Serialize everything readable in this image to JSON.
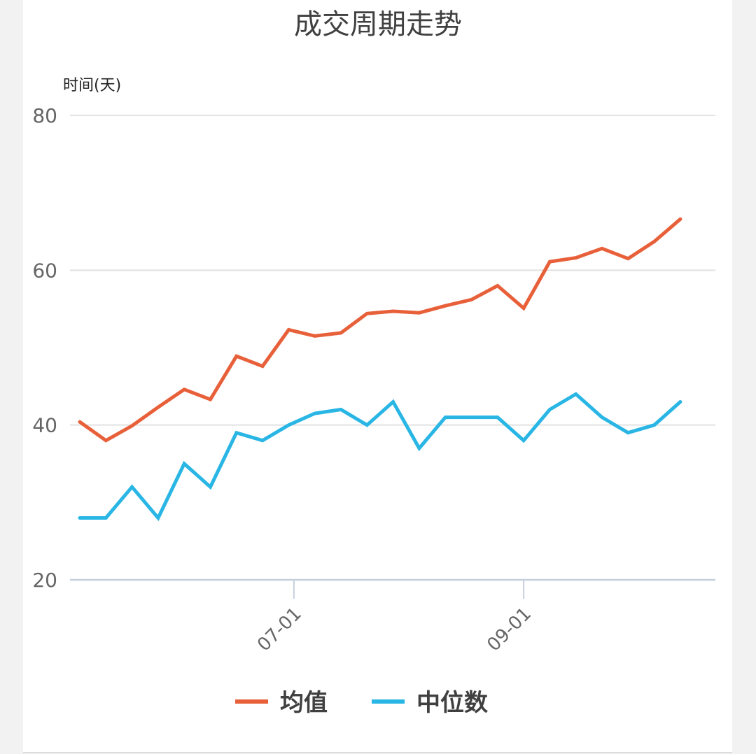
{
  "chart_data": {
    "type": "line",
    "title": "成交周期走势",
    "ylabel": "时间(天)",
    "ylim": [
      20,
      80
    ],
    "yticks": [
      20,
      40,
      60,
      80
    ],
    "x_tick_labels": [
      "07-01",
      "09-01"
    ],
    "x_tick_indices": [
      8.2,
      17.0
    ],
    "grid": true,
    "legend_position": "bottom",
    "series": [
      {
        "name": "均值",
        "color": "#e8603a",
        "values": [
          40.4,
          38.0,
          39.9,
          42.3,
          44.6,
          43.3,
          48.9,
          47.6,
          52.3,
          51.5,
          51.9,
          54.4,
          54.7,
          54.5,
          55.4,
          56.2,
          58.0,
          55.1,
          61.1,
          61.6,
          62.8,
          61.5,
          63.7,
          66.6
        ]
      },
      {
        "name": "中位数",
        "color": "#29b6e4",
        "values": [
          28.0,
          28.0,
          32.0,
          28.0,
          35.0,
          32.0,
          39.0,
          38.0,
          40.0,
          41.5,
          42.0,
          40.0,
          43.0,
          37.0,
          41.0,
          41.0,
          41.0,
          38.0,
          42.0,
          44.0,
          41.0,
          39.0,
          40.0,
          43.0
        ]
      }
    ]
  }
}
